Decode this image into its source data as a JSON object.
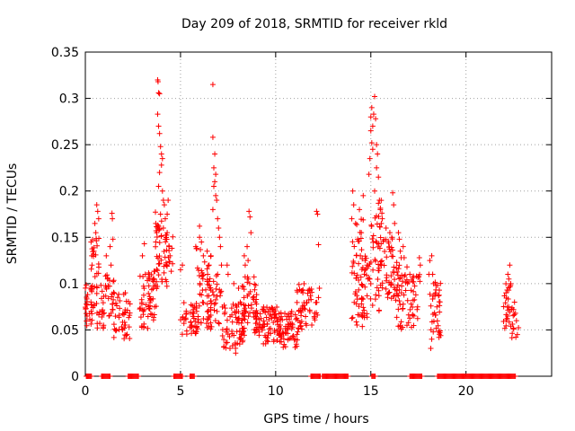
{
  "chart_data": {
    "type": "scatter",
    "title": "Day 209 of 2018, SRMTID for receiver rkld",
    "xlabel": "GPS time / hours",
    "ylabel": "SRMTID / TECUs",
    "xlim": [
      0,
      24.5
    ],
    "ylim": [
      0,
      0.35
    ],
    "grid": true,
    "marker": "+",
    "colors": {
      "series": "#ff0000",
      "grid": "#a0a0a0",
      "axis": "#000000"
    },
    "x_ticks": [
      {
        "value": 0,
        "label": "0"
      },
      {
        "value": 5,
        "label": "5"
      },
      {
        "value": 10,
        "label": "10"
      },
      {
        "value": 15,
        "label": "15"
      },
      {
        "value": 20,
        "label": "20"
      }
    ],
    "y_ticks": [
      {
        "value": 0,
        "label": "0"
      },
      {
        "value": 0.05,
        "label": "0.05"
      },
      {
        "value": 0.1,
        "label": "0.1"
      },
      {
        "value": 0.15,
        "label": "0.15"
      },
      {
        "value": 0.2,
        "label": "0.2"
      },
      {
        "value": 0.25,
        "label": "0.25"
      },
      {
        "value": 0.3,
        "label": "0.3"
      },
      {
        "value": 0.35,
        "label": "0.35"
      }
    ],
    "series": [
      {
        "name": "SRMTID",
        "clusters": [
          {
            "x": [
              0.0,
              0.35
            ],
            "y": [
              0.05,
              0.1
            ],
            "n": 25
          },
          {
            "x": [
              0.3,
              0.75
            ],
            "y": [
              0.05,
              0.15
            ],
            "n": 35
          },
          {
            "x": [
              0.75,
              1.05
            ],
            "y": [
              0.05,
              0.1
            ],
            "n": 15
          },
          {
            "x": [
              1.05,
              1.5
            ],
            "y": [
              0.06,
              0.11
            ],
            "n": 25
          },
          {
            "x": [
              1.5,
              2.35
            ],
            "y": [
              0.04,
              0.09
            ],
            "n": 45
          },
          {
            "x": [
              2.8,
              3.4
            ],
            "y": [
              0.05,
              0.11
            ],
            "n": 30
          },
          {
            "x": [
              3.3,
              3.75
            ],
            "y": [
              0.06,
              0.12
            ],
            "n": 30
          },
          {
            "x": [
              3.6,
              4.3
            ],
            "y": [
              0.09,
              0.18
            ],
            "n": 40
          },
          {
            "x": [
              4.2,
              4.6
            ],
            "y": [
              0.1,
              0.16
            ],
            "n": 15
          },
          {
            "x": [
              5.0,
              5.9
            ],
            "y": [
              0.045,
              0.08
            ],
            "n": 40
          },
          {
            "x": [
              5.8,
              6.6
            ],
            "y": [
              0.05,
              0.14
            ],
            "n": 45
          },
          {
            "x": [
              6.4,
              7.2
            ],
            "y": [
              0.05,
              0.11
            ],
            "n": 40
          },
          {
            "x": [
              7.2,
              8.4
            ],
            "y": [
              0.03,
              0.08
            ],
            "n": 70
          },
          {
            "x": [
              8.2,
              9.0
            ],
            "y": [
              0.05,
              0.11
            ],
            "n": 45
          },
          {
            "x": [
              8.9,
              10.3
            ],
            "y": [
              0.035,
              0.075
            ],
            "n": 90
          },
          {
            "x": [
              10.2,
              11.2
            ],
            "y": [
              0.03,
              0.07
            ],
            "n": 60
          },
          {
            "x": [
              11.1,
              11.9
            ],
            "y": [
              0.05,
              0.1
            ],
            "n": 45
          },
          {
            "x": [
              12.0,
              12.3
            ],
            "y": [
              0.06,
              0.08
            ],
            "n": 8
          },
          {
            "x": [
              14.0,
              14.6
            ],
            "y": [
              0.05,
              0.17
            ],
            "n": 45
          },
          {
            "x": [
              14.5,
              15.0
            ],
            "y": [
              0.06,
              0.13
            ],
            "n": 30
          },
          {
            "x": [
              15.0,
              15.6
            ],
            "y": [
              0.07,
              0.19
            ],
            "n": 45
          },
          {
            "x": [
              15.6,
              16.5
            ],
            "y": [
              0.08,
              0.15
            ],
            "n": 50
          },
          {
            "x": [
              16.3,
              17.3
            ],
            "y": [
              0.05,
              0.11
            ],
            "n": 50
          },
          {
            "x": [
              17.2,
              17.6
            ],
            "y": [
              0.06,
              0.12
            ],
            "n": 12
          },
          {
            "x": [
              18.1,
              18.7
            ],
            "y": [
              0.04,
              0.11
            ],
            "n": 35
          },
          {
            "x": [
              21.9,
              22.4
            ],
            "y": [
              0.05,
              0.1
            ],
            "n": 25
          },
          {
            "x": [
              22.4,
              22.8
            ],
            "y": [
              0.04,
              0.08
            ],
            "n": 10
          }
        ],
        "points": [
          [
            0.3,
            0.145
          ],
          [
            0.35,
            0.12
          ],
          [
            0.5,
            0.165
          ],
          [
            0.55,
            0.155
          ],
          [
            0.6,
            0.185
          ],
          [
            0.65,
            0.178
          ],
          [
            0.7,
            0.17
          ],
          [
            0.45,
            0.135
          ],
          [
            1.3,
            0.14
          ],
          [
            1.35,
            0.12
          ],
          [
            1.4,
            0.176
          ],
          [
            1.42,
            0.17
          ],
          [
            1.45,
            0.148
          ],
          [
            1.1,
            0.13
          ],
          [
            2.1,
            0.09
          ],
          [
            3.0,
            0.13
          ],
          [
            3.1,
            0.143
          ],
          [
            3.15,
            0.11
          ],
          [
            3.8,
            0.32
          ],
          [
            3.82,
            0.318
          ],
          [
            3.85,
            0.306
          ],
          [
            3.9,
            0.305
          ],
          [
            3.8,
            0.283
          ],
          [
            3.85,
            0.27
          ],
          [
            3.9,
            0.262
          ],
          [
            3.95,
            0.248
          ],
          [
            4.0,
            0.24
          ],
          [
            4.05,
            0.235
          ],
          [
            4.0,
            0.228
          ],
          [
            3.9,
            0.22
          ],
          [
            3.85,
            0.205
          ],
          [
            4.05,
            0.2
          ],
          [
            4.1,
            0.19
          ],
          [
            4.15,
            0.185
          ],
          [
            3.95,
            0.175
          ],
          [
            4.1,
            0.16
          ],
          [
            4.2,
            0.17
          ],
          [
            4.3,
            0.175
          ],
          [
            4.35,
            0.19
          ],
          [
            4.3,
            0.155
          ],
          [
            4.2,
            0.148
          ],
          [
            4.4,
            0.14
          ],
          [
            4.45,
            0.13
          ],
          [
            3.7,
            0.165
          ],
          [
            3.75,
            0.155
          ],
          [
            3.7,
            0.145
          ],
          [
            5.0,
            0.115
          ],
          [
            5.1,
            0.12
          ],
          [
            5.8,
            0.14
          ],
          [
            6.0,
            0.15
          ],
          [
            6.1,
            0.145
          ],
          [
            6.0,
            0.162
          ],
          [
            6.2,
            0.13
          ],
          [
            6.4,
            0.135
          ],
          [
            6.5,
            0.12
          ],
          [
            6.6,
            0.13
          ],
          [
            6.7,
            0.315
          ],
          [
            6.7,
            0.258
          ],
          [
            6.75,
            0.225
          ],
          [
            6.8,
            0.24
          ],
          [
            6.85,
            0.218
          ],
          [
            6.8,
            0.21
          ],
          [
            6.75,
            0.205
          ],
          [
            6.85,
            0.195
          ],
          [
            6.9,
            0.19
          ],
          [
            6.7,
            0.18
          ],
          [
            6.95,
            0.17
          ],
          [
            7.05,
            0.15
          ],
          [
            7.1,
            0.14
          ],
          [
            7.0,
            0.16
          ],
          [
            7.15,
            0.12
          ],
          [
            6.95,
            0.11
          ],
          [
            7.45,
            0.12
          ],
          [
            7.5,
            0.11
          ],
          [
            8.6,
            0.178
          ],
          [
            8.65,
            0.172
          ],
          [
            8.7,
            0.155
          ],
          [
            8.5,
            0.14
          ],
          [
            8.55,
            0.125
          ],
          [
            8.4,
            0.12
          ],
          [
            8.35,
            0.13
          ],
          [
            7.8,
            0.1
          ],
          [
            8.05,
            0.095
          ],
          [
            7.6,
            0.03
          ],
          [
            7.9,
            0.025
          ],
          [
            12.15,
            0.178
          ],
          [
            12.2,
            0.175
          ],
          [
            12.25,
            0.142
          ],
          [
            12.3,
            0.095
          ],
          [
            12.25,
            0.085
          ],
          [
            14.05,
            0.2
          ],
          [
            14.1,
            0.185
          ],
          [
            14.0,
            0.17
          ],
          [
            14.2,
            0.165
          ],
          [
            14.3,
            0.148
          ],
          [
            14.4,
            0.18
          ],
          [
            14.6,
            0.195
          ],
          [
            14.5,
            0.155
          ],
          [
            14.45,
            0.13
          ],
          [
            14.7,
            0.125
          ],
          [
            14.8,
            0.12
          ],
          [
            15.0,
            0.28
          ],
          [
            15.05,
            0.29
          ],
          [
            15.1,
            0.27
          ],
          [
            15.15,
            0.283
          ],
          [
            15.0,
            0.265
          ],
          [
            15.05,
            0.252
          ],
          [
            15.1,
            0.245
          ],
          [
            15.2,
            0.302
          ],
          [
            15.25,
            0.278
          ],
          [
            15.3,
            0.25
          ],
          [
            15.35,
            0.24
          ],
          [
            15.3,
            0.225
          ],
          [
            15.4,
            0.215
          ],
          [
            15.45,
            0.19
          ],
          [
            15.2,
            0.2
          ],
          [
            14.95,
            0.235
          ],
          [
            14.9,
            0.218
          ],
          [
            15.5,
            0.18
          ],
          [
            15.55,
            0.165
          ],
          [
            15.6,
            0.17
          ],
          [
            15.8,
            0.16
          ],
          [
            16.0,
            0.155
          ],
          [
            16.15,
            0.198
          ],
          [
            16.2,
            0.185
          ],
          [
            16.25,
            0.165
          ],
          [
            16.1,
            0.15
          ],
          [
            16.5,
            0.148
          ],
          [
            16.55,
            0.135
          ],
          [
            16.6,
            0.128
          ],
          [
            16.7,
            0.14
          ],
          [
            16.75,
            0.128
          ],
          [
            16.9,
            0.118
          ],
          [
            17.05,
            0.11
          ],
          [
            17.2,
            0.102
          ],
          [
            16.45,
            0.155
          ],
          [
            17.55,
            0.128
          ],
          [
            17.6,
            0.12
          ],
          [
            17.4,
            0.108
          ],
          [
            18.1,
            0.125
          ],
          [
            18.2,
            0.13
          ],
          [
            18.25,
            0.11
          ],
          [
            18.3,
            0.1
          ],
          [
            18.05,
            0.11
          ],
          [
            18.4,
            0.09
          ],
          [
            18.5,
            0.098
          ],
          [
            18.15,
            0.03
          ],
          [
            18.2,
            0.04
          ],
          [
            22.2,
            0.11
          ],
          [
            22.25,
            0.105
          ],
          [
            22.3,
            0.12
          ],
          [
            22.35,
            0.1
          ],
          [
            22.1,
            0.09
          ],
          [
            22.5,
            0.072
          ],
          [
            22.6,
            0.068
          ],
          [
            22.65,
            0.06
          ],
          [
            22.7,
            0.045
          ],
          [
            22.55,
            0.08
          ]
        ]
      }
    ],
    "zero_segments": [
      [
        0.05,
        0.35
      ],
      [
        0.85,
        1.3
      ],
      [
        2.25,
        2.8
      ],
      [
        4.65,
        5.1
      ],
      [
        5.5,
        5.75
      ],
      [
        11.85,
        12.35
      ],
      [
        12.45,
        13.8
      ],
      [
        15.05,
        15.25
      ],
      [
        17.05,
        17.7
      ],
      [
        18.5,
        22.6
      ]
    ]
  }
}
